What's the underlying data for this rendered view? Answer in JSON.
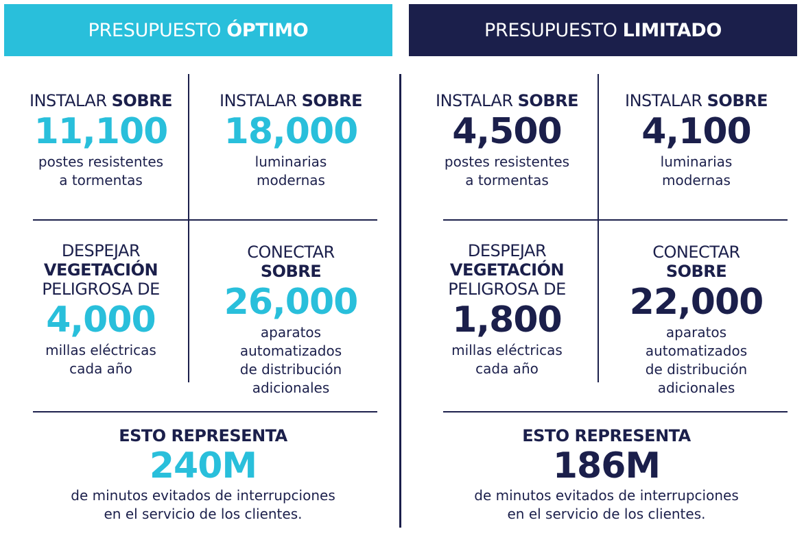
{
  "optimo": {
    "banner_prefix": "PRESUPUESTO",
    "banner_bold": "ÓPTIMO",
    "postes": {
      "pre_text": "INSTALAR",
      "pre_bold": "SOBRE",
      "number": "11,100",
      "desc1": "postes resistentes",
      "desc2": "a tormentas"
    },
    "luminarias": {
      "pre_text": "INSTALAR",
      "pre_bold": "SOBRE",
      "number": "18,000",
      "desc1": "luminarias",
      "desc2": "modernas"
    },
    "vegetacion": {
      "line1": "DESPEJAR",
      "line2": "VEGETACIÓN",
      "line3": "PELIGROSA DE",
      "number": "4,000",
      "desc1": "millas eléctricas",
      "desc2": "cada año"
    },
    "aparatos": {
      "line1": "CONECTAR",
      "line2": "SOBRE",
      "number": "26,000",
      "desc1": "aparatos",
      "desc2": "automatizados",
      "desc3": "de distribución",
      "desc4": "adicionales"
    },
    "summary": {
      "label": "ESTO REPRESENTA",
      "number": "240M",
      "desc1": "de minutos evitados de interrupciones",
      "desc2": "en el servicio de los clientes."
    }
  },
  "limitado": {
    "banner_prefix": "PRESUPUESTO",
    "banner_bold": "LIMITADO",
    "postes": {
      "pre_text": "INSTALAR",
      "pre_bold": "SOBRE",
      "number": "4,500",
      "desc1": "postes resistentes",
      "desc2": "a tormentas"
    },
    "luminarias": {
      "pre_text": "INSTALAR",
      "pre_bold": "SOBRE",
      "number": "4,100",
      "desc1": "luminarias",
      "desc2": "modernas"
    },
    "vegetacion": {
      "line1": "DESPEJAR",
      "line2": "VEGETACIÓN",
      "line3": "PELIGROSA DE",
      "number": "1,800",
      "desc1": "millas eléctricas",
      "desc2": "cada año"
    },
    "aparatos": {
      "line1": "CONECTAR",
      "line2": "SOBRE",
      "number": "22,000",
      "desc1": "aparatos",
      "desc2": "automatizados",
      "desc3": "de distribución",
      "desc4": "adicionales"
    },
    "summary": {
      "label": "ESTO REPRESENTA",
      "number": "186M",
      "desc1": "de minutos evitados de interrupciones",
      "desc2": "en el servicio de los clientes."
    }
  },
  "colors": {
    "accent": "#29bfdb",
    "navy": "#1b1f4b"
  }
}
